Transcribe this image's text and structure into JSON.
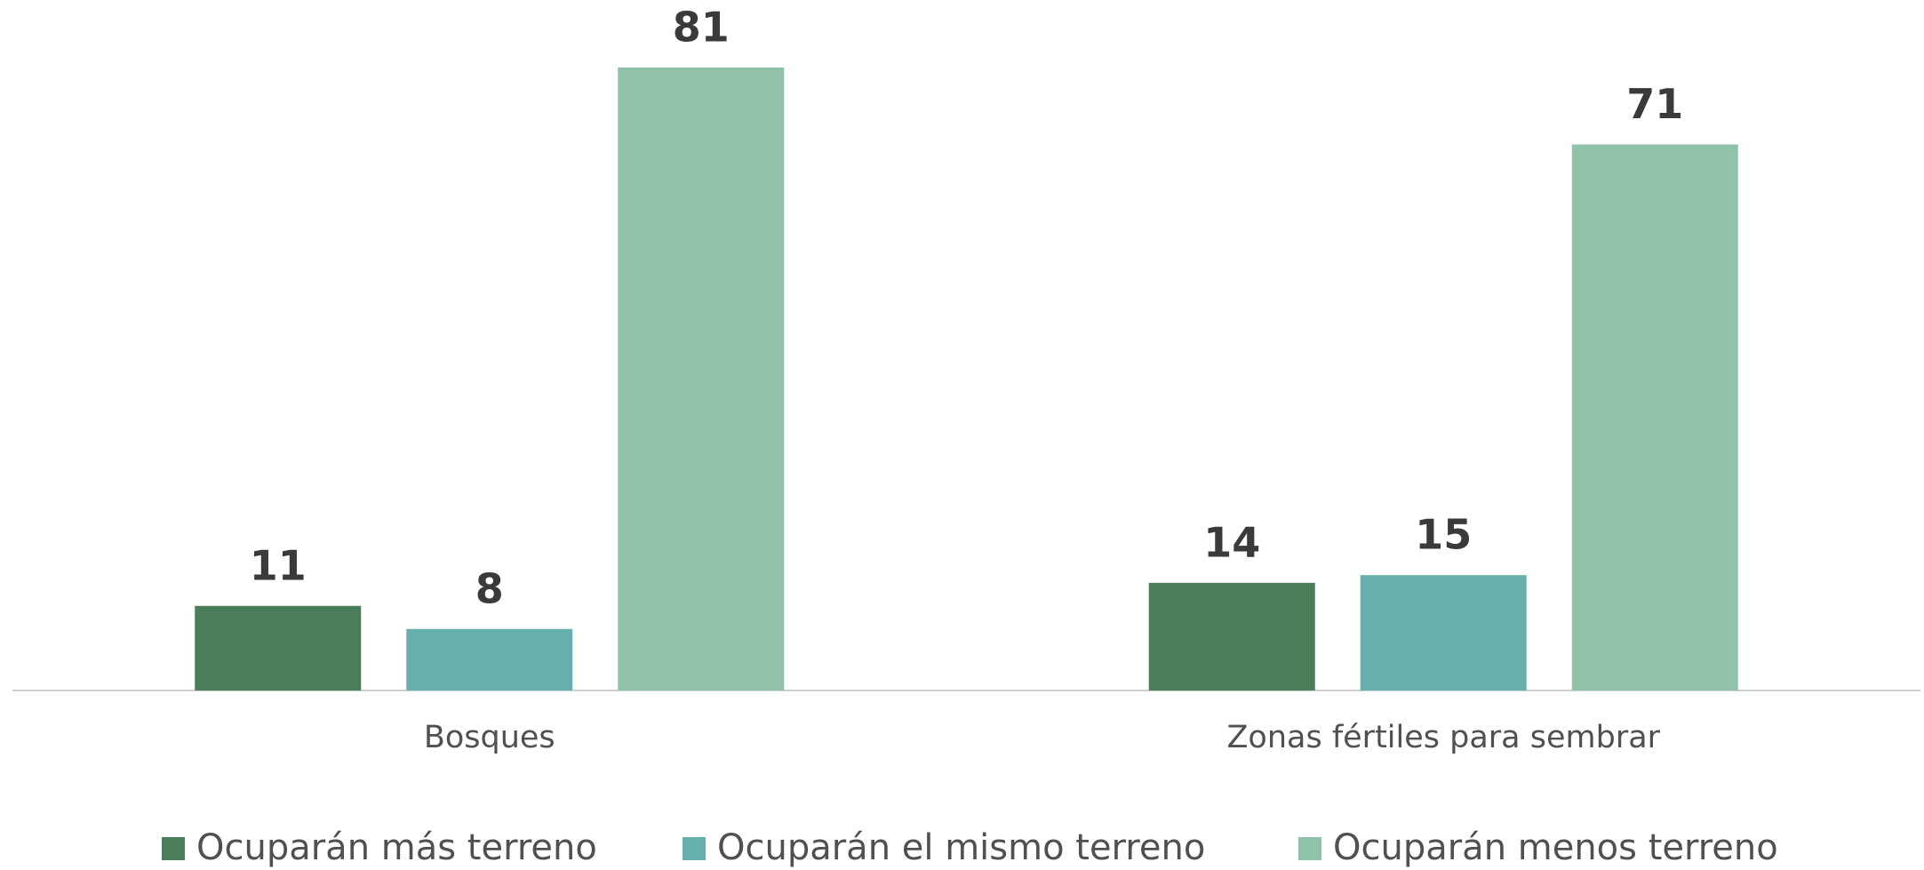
{
  "chart_data": {
    "type": "bar",
    "categories": [
      "Bosques",
      "Zonas fértiles para sembrar"
    ],
    "series": [
      {
        "name": "Ocuparán más terreno",
        "color": "#4a7d5a",
        "values": [
          11,
          14
        ]
      },
      {
        "name": "Ocuparán el mismo terreno",
        "color": "#67afac",
        "values": [
          8,
          15
        ]
      },
      {
        "name": "Ocuparán menos terreno",
        "color": "#90c1a9",
        "values": [
          81,
          71
        ]
      }
    ],
    "legend": "bottom"
  }
}
